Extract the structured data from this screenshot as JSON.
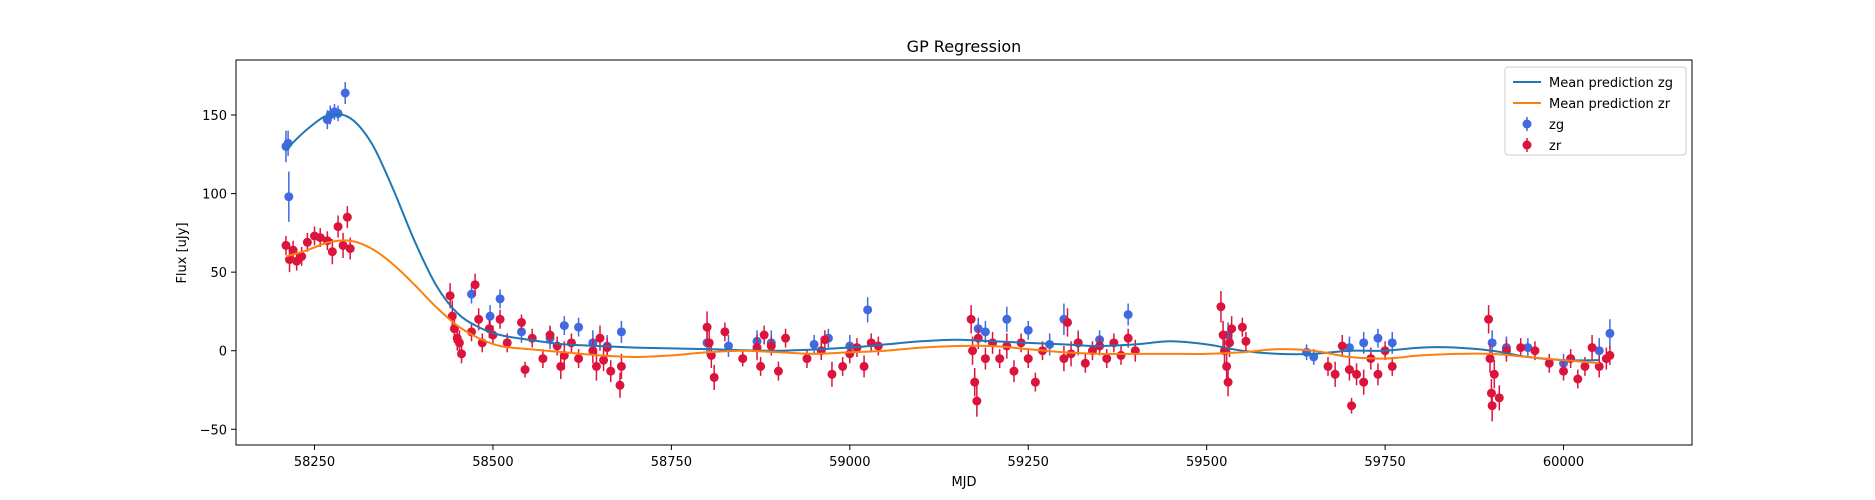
{
  "chart_data": {
    "type": "scatter",
    "title": "GP Regression",
    "xlabel": "MJD",
    "ylabel": "Flux [uJy]",
    "xlim": [
      58140,
      60180
    ],
    "ylim": [
      -60,
      185
    ],
    "x_ticks": [
      58250,
      58500,
      58750,
      59000,
      59250,
      59500,
      59750,
      60000
    ],
    "y_ticks": [
      -50,
      0,
      50,
      100,
      150
    ],
    "grid": false,
    "legend_position": "top-right",
    "colors": {
      "mean_zg": "#1f77b4",
      "mean_zr": "#ff7f0e",
      "points_zg": "#4169e1",
      "points_zr": "#dc143c"
    },
    "lines": [
      {
        "name": "Mean prediction zg",
        "x": [
          58210,
          58240,
          58270,
          58300,
          58330,
          58360,
          58390,
          58420,
          58450,
          58480,
          58510,
          58550,
          58600,
          58650,
          58700,
          58800,
          58900,
          59000,
          59050,
          59100,
          59150,
          59200,
          59250,
          59300,
          59350,
          59400,
          59450,
          59500,
          59550,
          59600,
          59650,
          59700,
          59750,
          59800,
          59850,
          59900,
          59950,
          60000,
          60050
        ],
        "y": [
          128,
          141,
          150,
          148,
          132,
          103,
          70,
          42,
          24,
          15,
          10,
          7,
          4,
          3,
          2,
          1,
          0,
          2,
          4,
          6,
          7,
          6,
          5,
          4,
          3,
          4,
          6,
          4,
          0,
          -2,
          -2,
          0,
          0,
          2,
          2,
          0,
          -4,
          -6,
          -6
        ]
      },
      {
        "name": "Mean prediction zr",
        "x": [
          58210,
          58240,
          58270,
          58300,
          58330,
          58360,
          58390,
          58420,
          58450,
          58480,
          58510,
          58550,
          58600,
          58650,
          58700,
          58750,
          58800,
          58850,
          58900,
          58950,
          59000,
          59050,
          59100,
          59150,
          59200,
          59250,
          59300,
          59350,
          59400,
          59450,
          59500,
          59550,
          59600,
          59650,
          59700,
          59750,
          59800,
          59850,
          59900,
          59950,
          60000,
          60050
        ],
        "y": [
          60,
          64,
          69,
          70,
          65,
          55,
          42,
          28,
          16,
          8,
          3,
          1,
          -1,
          -3,
          -4,
          -3,
          -1,
          0,
          -1,
          -2,
          -1,
          0,
          2,
          3,
          3,
          1,
          -1,
          -2,
          -2,
          -2,
          -2,
          -1,
          1,
          0,
          -4,
          -5,
          -3,
          -2,
          -2,
          -4,
          -6,
          -8
        ]
      }
    ],
    "series": [
      {
        "name": "zg",
        "points": [
          [
            58210,
            130,
            10
          ],
          [
            58213,
            132,
            8
          ],
          [
            58214,
            98,
            16
          ],
          [
            58268,
            147,
            6
          ],
          [
            58272,
            150,
            6
          ],
          [
            58278,
            152,
            5
          ],
          [
            58283,
            151,
            5
          ],
          [
            58293,
            164,
            7
          ],
          [
            58470,
            36,
            6
          ],
          [
            58496,
            22,
            7
          ],
          [
            58510,
            33,
            6
          ],
          [
            58540,
            12,
            7
          ],
          [
            58580,
            8,
            7
          ],
          [
            58600,
            16,
            6
          ],
          [
            58620,
            15,
            6
          ],
          [
            58640,
            5,
            8
          ],
          [
            58660,
            3,
            7
          ],
          [
            58680,
            12,
            7
          ],
          [
            58800,
            5,
            8
          ],
          [
            58830,
            3,
            7
          ],
          [
            58870,
            6,
            7
          ],
          [
            58890,
            5,
            8
          ],
          [
            58950,
            4,
            6
          ],
          [
            58970,
            8,
            6
          ],
          [
            59000,
            3,
            7
          ],
          [
            59025,
            26,
            8
          ],
          [
            59180,
            14,
            7
          ],
          [
            59190,
            12,
            7
          ],
          [
            59220,
            20,
            8
          ],
          [
            59250,
            13,
            6
          ],
          [
            59280,
            4,
            7
          ],
          [
            59300,
            20,
            10
          ],
          [
            59320,
            5,
            8
          ],
          [
            59350,
            7,
            6
          ],
          [
            59390,
            23,
            7
          ],
          [
            59530,
            10,
            8
          ],
          [
            59640,
            -1,
            5
          ],
          [
            59650,
            -4,
            5
          ],
          [
            59700,
            2,
            7
          ],
          [
            59720,
            5,
            7
          ],
          [
            59740,
            8,
            6
          ],
          [
            59760,
            5,
            7
          ],
          [
            59900,
            5,
            8
          ],
          [
            59920,
            2,
            7
          ],
          [
            59950,
            2,
            6
          ],
          [
            60000,
            -8,
            6
          ],
          [
            60050,
            0,
            8
          ],
          [
            60065,
            11,
            9
          ]
        ]
      },
      {
        "name": "zr",
        "points": [
          [
            58210,
            67,
            6
          ],
          [
            58215,
            58,
            8
          ],
          [
            58220,
            64,
            6
          ],
          [
            58225,
            57,
            6
          ],
          [
            58232,
            60,
            6
          ],
          [
            58240,
            69,
            6
          ],
          [
            58250,
            73,
            6
          ],
          [
            58258,
            72,
            6
          ],
          [
            58268,
            70,
            6
          ],
          [
            58275,
            63,
            8
          ],
          [
            58283,
            79,
            7
          ],
          [
            58290,
            67,
            8
          ],
          [
            58296,
            85,
            7
          ],
          [
            58300,
            65,
            7
          ],
          [
            58440,
            35,
            8
          ],
          [
            58443,
            22,
            10
          ],
          [
            58446,
            14,
            9
          ],
          [
            58450,
            8,
            8
          ],
          [
            58453,
            5,
            8
          ],
          [
            58456,
            -2,
            6
          ],
          [
            58470,
            12,
            6
          ],
          [
            58475,
            42,
            7
          ],
          [
            58480,
            20,
            7
          ],
          [
            58485,
            5,
            6
          ],
          [
            58495,
            14,
            6
          ],
          [
            58500,
            10,
            6
          ],
          [
            58510,
            20,
            6
          ],
          [
            58520,
            5,
            6
          ],
          [
            58540,
            18,
            5
          ],
          [
            58545,
            -12,
            5
          ],
          [
            58555,
            8,
            6
          ],
          [
            58570,
            -5,
            6
          ],
          [
            58580,
            10,
            6
          ],
          [
            58590,
            3,
            6
          ],
          [
            58595,
            -10,
            8
          ],
          [
            58600,
            -3,
            9
          ],
          [
            58610,
            5,
            6
          ],
          [
            58620,
            -5,
            6
          ],
          [
            58640,
            0,
            8
          ],
          [
            58645,
            -10,
            9
          ],
          [
            58650,
            8,
            8
          ],
          [
            58655,
            -6,
            7
          ],
          [
            58660,
            2,
            6
          ],
          [
            58665,
            -13,
            7
          ],
          [
            58678,
            -22,
            8
          ],
          [
            58680,
            -10,
            8
          ],
          [
            58800,
            15,
            10
          ],
          [
            58803,
            5,
            9
          ],
          [
            58806,
            -3,
            8
          ],
          [
            58810,
            -17,
            8
          ],
          [
            58825,
            12,
            6
          ],
          [
            58850,
            -5,
            5
          ],
          [
            58870,
            2,
            8
          ],
          [
            58875,
            -10,
            6
          ],
          [
            58880,
            10,
            6
          ],
          [
            58890,
            3,
            6
          ],
          [
            58900,
            -13,
            6
          ],
          [
            58910,
            8,
            6
          ],
          [
            58940,
            -5,
            6
          ],
          [
            58960,
            0,
            6
          ],
          [
            58965,
            7,
            6
          ],
          [
            58975,
            -15,
            8
          ],
          [
            58990,
            -10,
            6
          ],
          [
            59000,
            -2,
            6
          ],
          [
            59010,
            2,
            6
          ],
          [
            59020,
            -10,
            7
          ],
          [
            59030,
            5,
            6
          ],
          [
            59040,
            3,
            6
          ],
          [
            59170,
            20,
            9
          ],
          [
            59172,
            0,
            9
          ],
          [
            59175,
            -20,
            9
          ],
          [
            59178,
            -32,
            10
          ],
          [
            59180,
            8,
            7
          ],
          [
            59190,
            -5,
            7
          ],
          [
            59200,
            5,
            7
          ],
          [
            59210,
            -5,
            6
          ],
          [
            59220,
            3,
            8
          ],
          [
            59230,
            -13,
            7
          ],
          [
            59240,
            5,
            6
          ],
          [
            59250,
            -5,
            6
          ],
          [
            59260,
            -20,
            6
          ],
          [
            59270,
            0,
            6
          ],
          [
            59300,
            -5,
            8
          ],
          [
            59305,
            18,
            9
          ],
          [
            59310,
            -2,
            8
          ],
          [
            59320,
            5,
            7
          ],
          [
            59330,
            -8,
            6
          ],
          [
            59340,
            0,
            6
          ],
          [
            59350,
            3,
            6
          ],
          [
            59360,
            -5,
            6
          ],
          [
            59370,
            5,
            6
          ],
          [
            59380,
            -3,
            6
          ],
          [
            59390,
            8,
            6
          ],
          [
            59400,
            0,
            7
          ],
          [
            59520,
            28,
            10
          ],
          [
            59523,
            10,
            9
          ],
          [
            59525,
            0,
            9
          ],
          [
            59528,
            -10,
            9
          ],
          [
            59530,
            -20,
            9
          ],
          [
            59532,
            5,
            9
          ],
          [
            59535,
            14,
            8
          ],
          [
            59550,
            15,
            6
          ],
          [
            59555,
            6,
            6
          ],
          [
            59670,
            -10,
            6
          ],
          [
            59680,
            -15,
            8
          ],
          [
            59690,
            3,
            7
          ],
          [
            59700,
            -12,
            7
          ],
          [
            59703,
            -35,
            5
          ],
          [
            59710,
            -15,
            7
          ],
          [
            59720,
            -20,
            8
          ],
          [
            59730,
            -5,
            7
          ],
          [
            59740,
            -15,
            7
          ],
          [
            59750,
            0,
            6
          ],
          [
            59760,
            -10,
            6
          ],
          [
            59895,
            20,
            9
          ],
          [
            59897,
            -5,
            9
          ],
          [
            59899,
            -27,
            9
          ],
          [
            59900,
            -35,
            10
          ],
          [
            59903,
            -15,
            9
          ],
          [
            59910,
            -30,
            8
          ],
          [
            59920,
            0,
            7
          ],
          [
            59940,
            2,
            6
          ],
          [
            59960,
            0,
            6
          ],
          [
            59980,
            -8,
            6
          ],
          [
            60000,
            -13,
            6
          ],
          [
            60010,
            -5,
            6
          ],
          [
            60020,
            -18,
            6
          ],
          [
            60030,
            -10,
            6
          ],
          [
            60040,
            2,
            8
          ],
          [
            60050,
            -10,
            7
          ],
          [
            60060,
            -5,
            7
          ],
          [
            60065,
            -3,
            6
          ]
        ]
      }
    ]
  }
}
